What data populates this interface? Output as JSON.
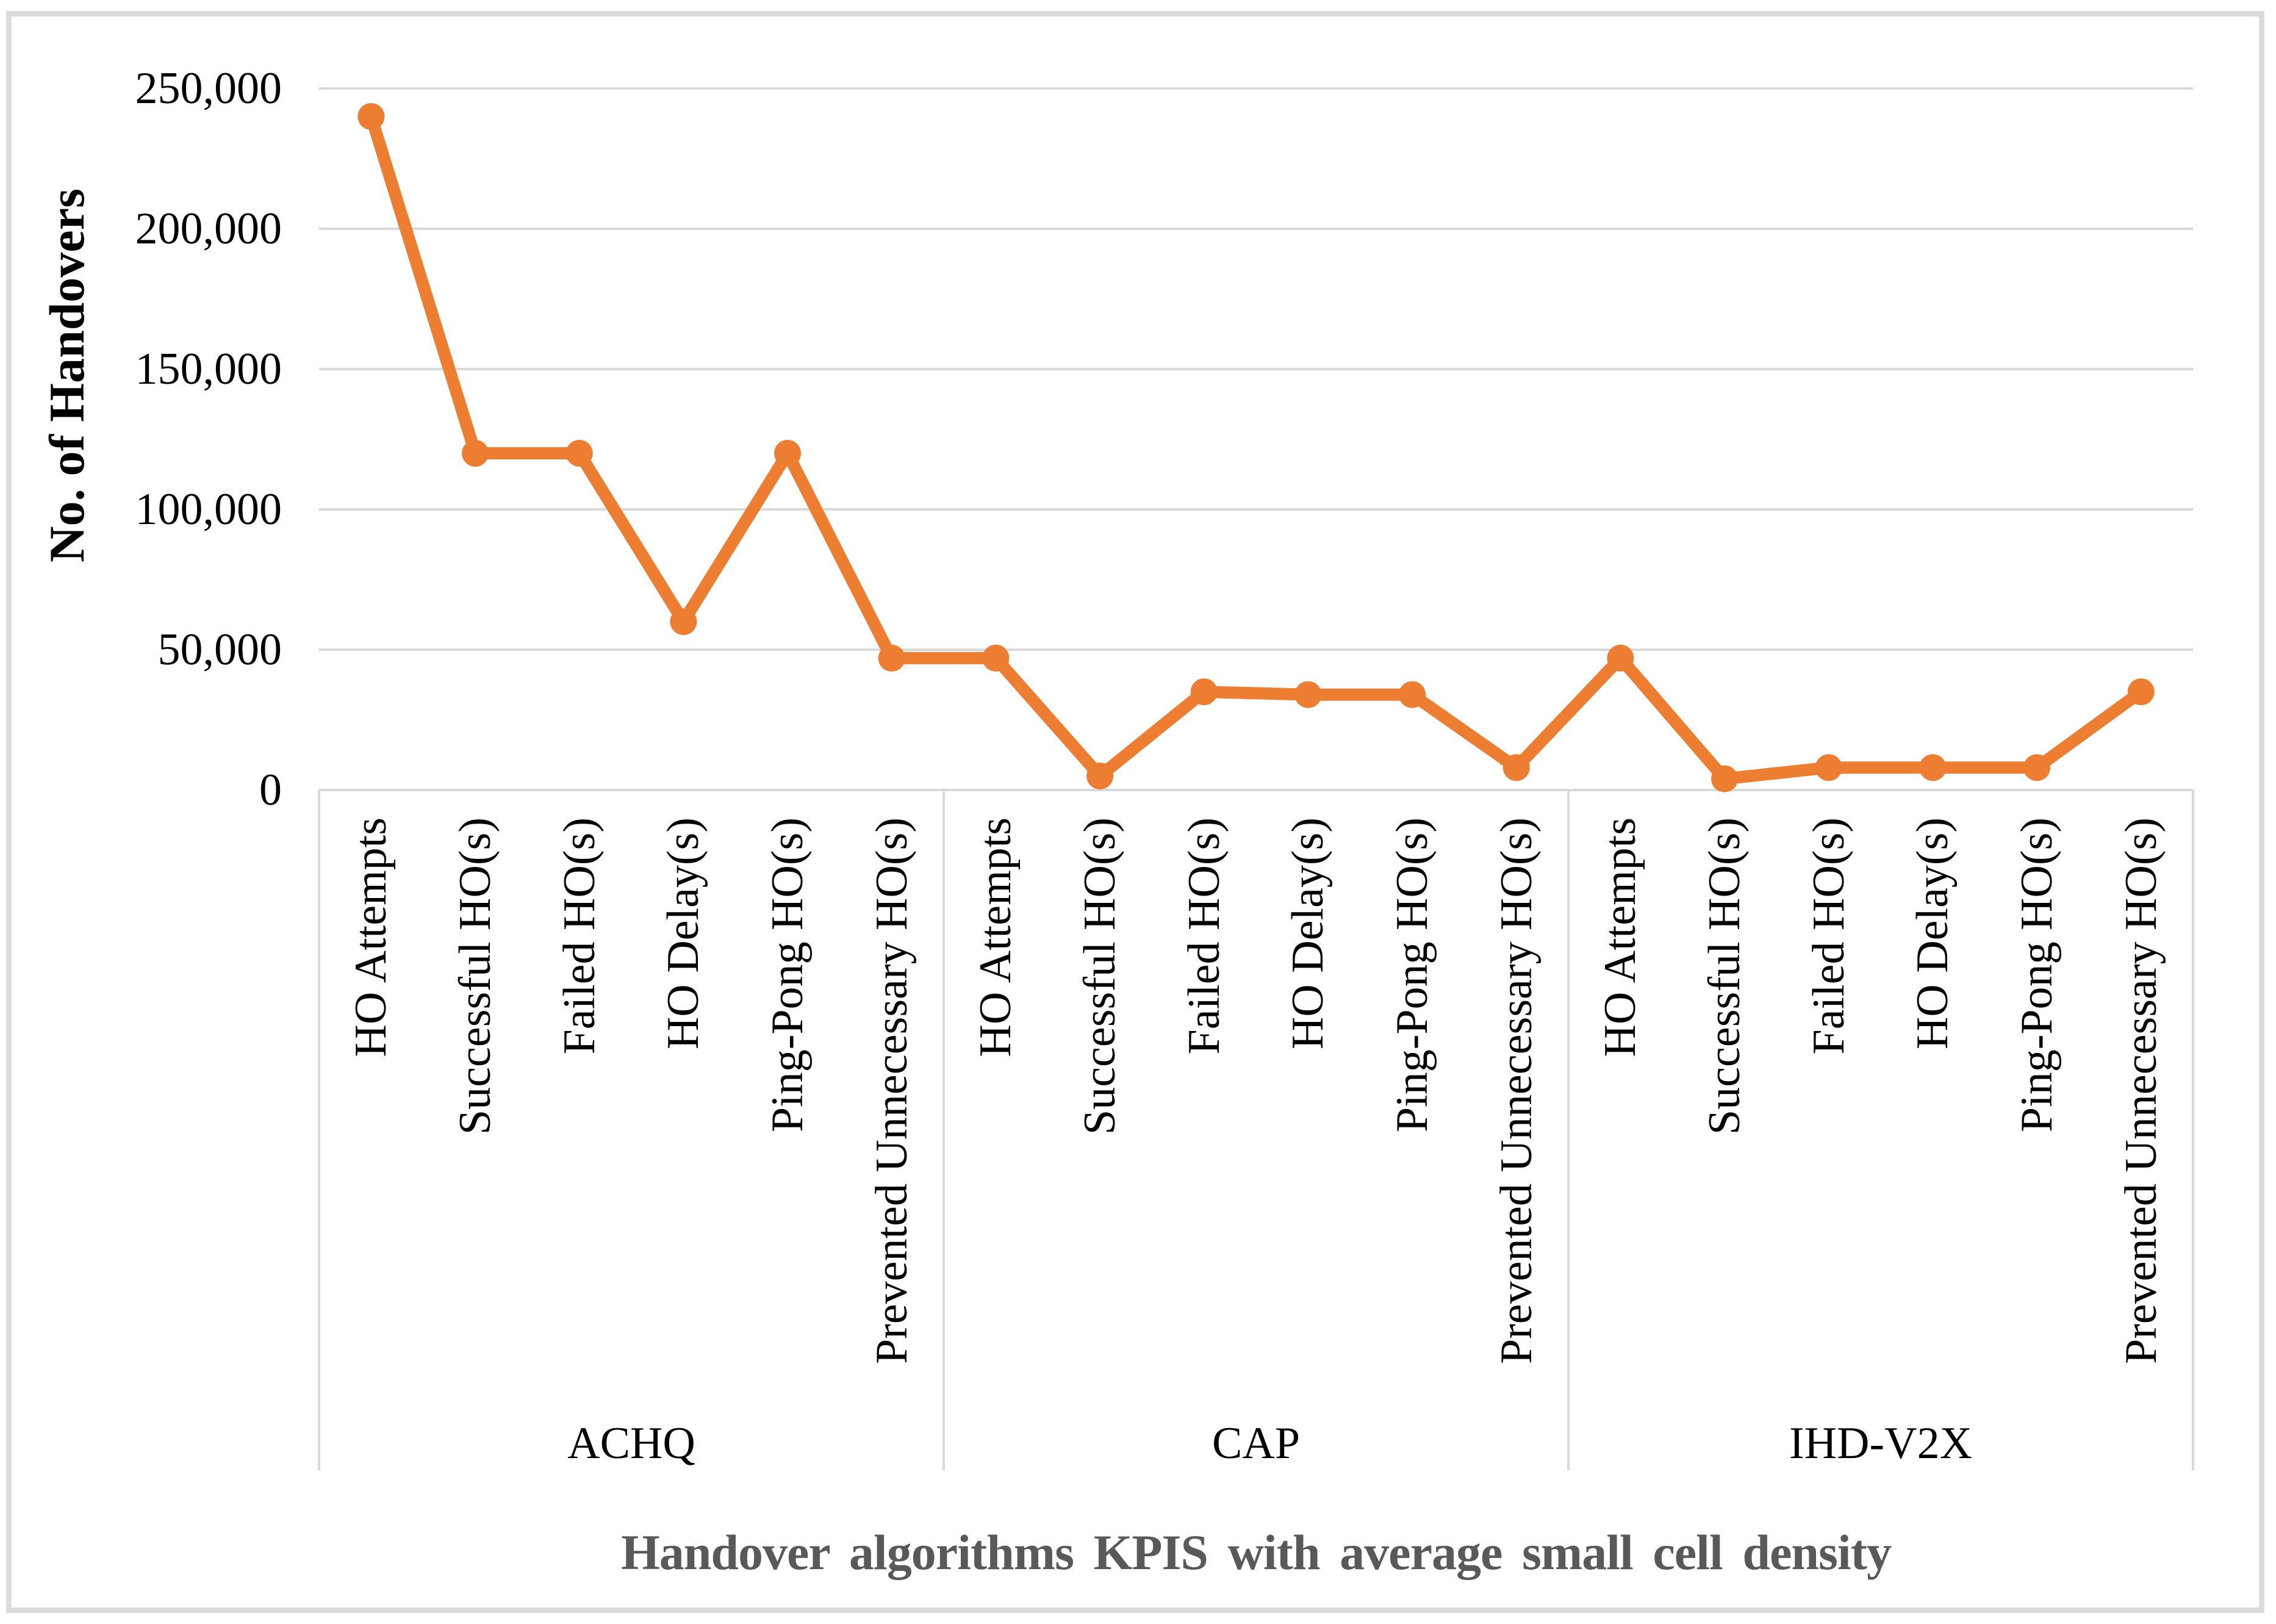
{
  "figure": {
    "background": "#ffffff",
    "border_color": "#DCDCDC"
  },
  "colors": {
    "series_line": "#ED7D31",
    "gridline": "#D9D9D9",
    "axis_line": "#D9D9D9",
    "tick_text": "#000000",
    "x_title_text": "#595959",
    "y_title_text": "#000000"
  },
  "chart_data": {
    "type": "line",
    "title": "",
    "xlabel": "Handover algorithms KPIS with average small cell density",
    "ylabel": "No. of Handovers",
    "ylim": [
      0,
      250000
    ],
    "yticks": [
      0,
      50000,
      100000,
      150000,
      200000,
      250000
    ],
    "ytick_labels": [
      "0",
      "50,000",
      "100,000",
      "150,000",
      "200,000",
      "250,000"
    ],
    "grid": true,
    "legend_position": "none",
    "marker": "circle",
    "line_color": "#ED7D31",
    "categories": [
      "HO Attempts",
      "Successful HO(s)",
      "Failed HO(s)",
      "HO Delay(s)",
      "Ping-Pong HO(s)",
      "Prevented Unnecessary HO(s)"
    ],
    "groups": [
      {
        "label": "ACHQ",
        "values": [
          240000,
          120000,
          120000,
          60000,
          120000,
          47000
        ]
      },
      {
        "label": "CAP",
        "values": [
          47000,
          5000,
          35000,
          34000,
          34000,
          8000
        ]
      },
      {
        "label": "IHD-V2X",
        "values": [
          47000,
          4000,
          8000,
          8000,
          8000,
          35000
        ]
      }
    ]
  }
}
